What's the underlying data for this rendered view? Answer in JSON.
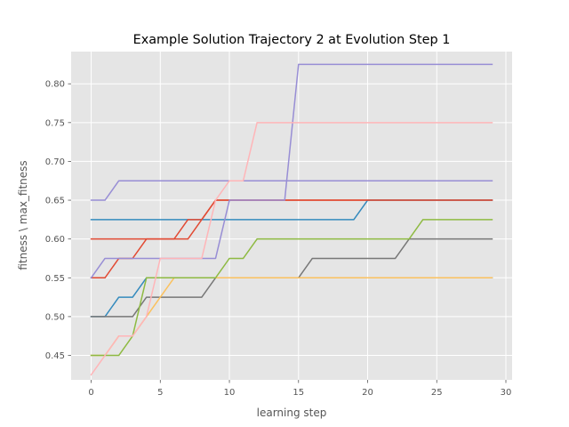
{
  "chart_data": {
    "type": "line",
    "title": "Example Solution Trajectory 2 at Evolution Step 1",
    "xlabel": "learning step",
    "ylabel": "fitness \\ max_fitness",
    "xlim": [
      -1.45,
      30.45
    ],
    "ylim": [
      0.4185,
      0.8415
    ],
    "x_ticks": [
      0,
      5,
      10,
      15,
      20,
      25,
      30
    ],
    "y_ticks": [
      0.45,
      0.5,
      0.55,
      0.6,
      0.65,
      0.7,
      0.75,
      0.8
    ],
    "x_tick_labels": [
      "0",
      "5",
      "10",
      "15",
      "20",
      "25",
      "30"
    ],
    "y_tick_labels": [
      "0.45",
      "0.50",
      "0.55",
      "0.60",
      "0.65",
      "0.70",
      "0.75",
      "0.80"
    ],
    "grid": true,
    "background": "#e5e5e5",
    "x": [
      0,
      1,
      2,
      3,
      4,
      5,
      6,
      7,
      8,
      9,
      10,
      11,
      12,
      13,
      14,
      15,
      16,
      17,
      18,
      19,
      20,
      21,
      22,
      23,
      24,
      25,
      26,
      27,
      28,
      29
    ],
    "series": [
      {
        "color": "#e24a33",
        "values": [
          0.55,
          0.55,
          0.575,
          0.575,
          0.6,
          0.6,
          0.6,
          0.6,
          0.625,
          0.65,
          0.65,
          0.65,
          0.65,
          0.65,
          0.65,
          0.65,
          0.65,
          0.65,
          0.65,
          0.65,
          0.65,
          0.65,
          0.65,
          0.65,
          0.65,
          0.65,
          0.65,
          0.65,
          0.65,
          0.65
        ]
      },
      {
        "color": "#348abd",
        "values": [
          0.5,
          0.5,
          0.525,
          0.525,
          0.55,
          0.55,
          0.55,
          0.55,
          0.55,
          0.55,
          0.55,
          0.55,
          0.55,
          0.55,
          0.55,
          0.55,
          0.55,
          0.55,
          0.55,
          0.55,
          0.55,
          0.55,
          0.55,
          0.55,
          0.55,
          0.55,
          0.55,
          0.55,
          0.55,
          0.55
        ]
      },
      {
        "color": "#348abd",
        "values": [
          0.625,
          0.625,
          0.625,
          0.625,
          0.625,
          0.625,
          0.625,
          0.625,
          0.625,
          0.625,
          0.625,
          0.625,
          0.625,
          0.625,
          0.625,
          0.625,
          0.625,
          0.625,
          0.625,
          0.625,
          0.65,
          0.65,
          0.65,
          0.65,
          0.65,
          0.65,
          0.65,
          0.65,
          0.65,
          0.65
        ]
      },
      {
        "color": "#e24a33",
        "values": [
          0.6,
          0.6,
          0.6,
          0.6,
          0.6,
          0.6,
          0.6,
          0.625,
          0.625,
          0.65,
          0.65,
          0.65,
          0.65,
          0.65,
          0.65,
          0.65,
          0.65,
          0.65,
          0.65,
          0.65,
          0.65,
          0.65,
          0.65,
          0.65,
          0.65,
          0.65,
          0.65,
          0.65,
          0.65,
          0.65
        ]
      },
      {
        "color": "#988ed5",
        "values": [
          0.65,
          0.65,
          0.675,
          0.675,
          0.675,
          0.675,
          0.675,
          0.675,
          0.675,
          0.675,
          0.675,
          0.675,
          0.675,
          0.675,
          0.675,
          0.675,
          0.675,
          0.675,
          0.675,
          0.675,
          0.675,
          0.675,
          0.675,
          0.675,
          0.675,
          0.675,
          0.675,
          0.675,
          0.675,
          0.675
        ]
      },
      {
        "color": "#988ed5",
        "values": [
          0.55,
          0.575,
          0.575,
          0.575,
          0.575,
          0.575,
          0.575,
          0.575,
          0.575,
          0.575,
          0.65,
          0.65,
          0.65,
          0.65,
          0.65,
          0.825,
          0.825,
          0.825,
          0.825,
          0.825,
          0.825,
          0.825,
          0.825,
          0.825,
          0.825,
          0.825,
          0.825,
          0.825,
          0.825,
          0.825
        ]
      },
      {
        "color": "#777777",
        "values": [
          0.5,
          0.5,
          0.5,
          0.5,
          0.525,
          0.525,
          0.525,
          0.525,
          0.525,
          0.55,
          0.55,
          0.55,
          0.55,
          0.55,
          0.55,
          0.55,
          0.575,
          0.575,
          0.575,
          0.575,
          0.575,
          0.575,
          0.575,
          0.6,
          0.6,
          0.6,
          0.6,
          0.6,
          0.6,
          0.6
        ]
      },
      {
        "color": "#fbc15e",
        "values": [
          0.45,
          0.45,
          0.475,
          0.475,
          0.5,
          0.525,
          0.55,
          0.55,
          0.55,
          0.55,
          0.55,
          0.55,
          0.55,
          0.55,
          0.55,
          0.55,
          0.55,
          0.55,
          0.55,
          0.55,
          0.55,
          0.55,
          0.55,
          0.55,
          0.55,
          0.55,
          0.55,
          0.55,
          0.55,
          0.55
        ]
      },
      {
        "color": "#8eba42",
        "values": [
          0.45,
          0.45,
          0.45,
          0.475,
          0.55,
          0.55,
          0.55,
          0.55,
          0.55,
          0.55,
          0.575,
          0.575,
          0.6,
          0.6,
          0.6,
          0.6,
          0.6,
          0.6,
          0.6,
          0.6,
          0.6,
          0.6,
          0.6,
          0.6,
          0.625,
          0.625,
          0.625,
          0.625,
          0.625,
          0.625
        ]
      },
      {
        "color": "#ffb5b8",
        "values": [
          0.425,
          0.45,
          0.475,
          0.475,
          0.5,
          0.575,
          0.575,
          0.575,
          0.575,
          0.65,
          0.675,
          0.675,
          0.75,
          0.75,
          0.75,
          0.75,
          0.75,
          0.75,
          0.75,
          0.75,
          0.75,
          0.75,
          0.75,
          0.75,
          0.75,
          0.75,
          0.75,
          0.75,
          0.75,
          0.75
        ]
      }
    ]
  }
}
